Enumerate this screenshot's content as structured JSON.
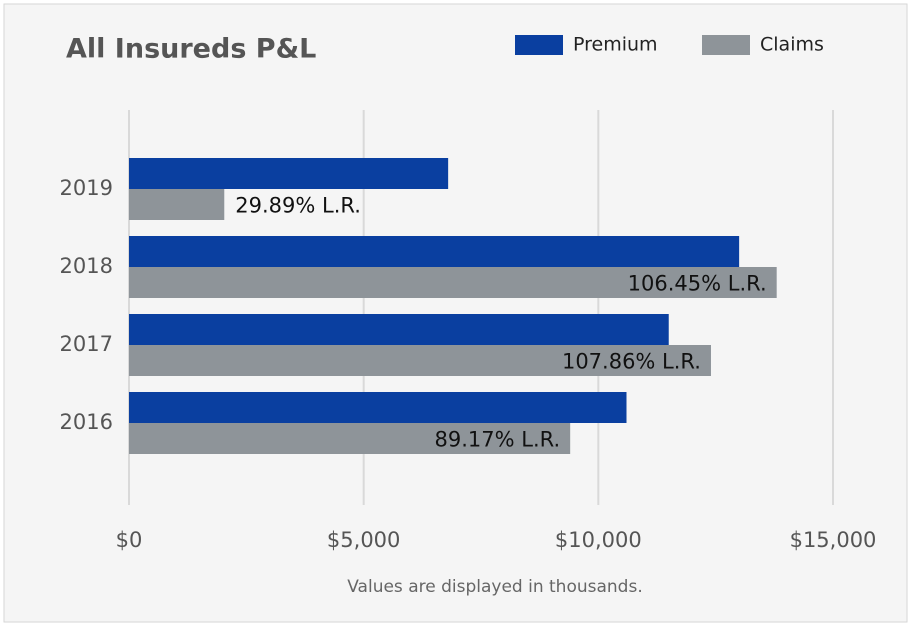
{
  "chart_data": {
    "type": "bar",
    "orientation": "horizontal",
    "title": "All Insureds P&L",
    "caption": "Values are displayed in thousands.",
    "categories": [
      "2019",
      "2018",
      "2017",
      "2016"
    ],
    "series": [
      {
        "name": "Premium",
        "color": "#0a3fa0",
        "values": [
          6800,
          13000,
          11500,
          10600
        ]
      },
      {
        "name": "Claims",
        "color": "#8e9499",
        "values": [
          2030,
          13800,
          12400,
          9400
        ]
      }
    ],
    "annotations": [
      "29.89% L.R.",
      "106.45% L.R.",
      "107.86% L.R.",
      "89.17% L.R."
    ],
    "xlim": [
      0,
      15000
    ],
    "xticks": [
      {
        "value": 0,
        "label": "$0"
      },
      {
        "value": 5000,
        "label": "$5,000"
      },
      {
        "value": 10000,
        "label": "$10,000"
      },
      {
        "value": 15000,
        "label": "$15,000"
      }
    ],
    "grid": true,
    "legend": "top-right"
  }
}
